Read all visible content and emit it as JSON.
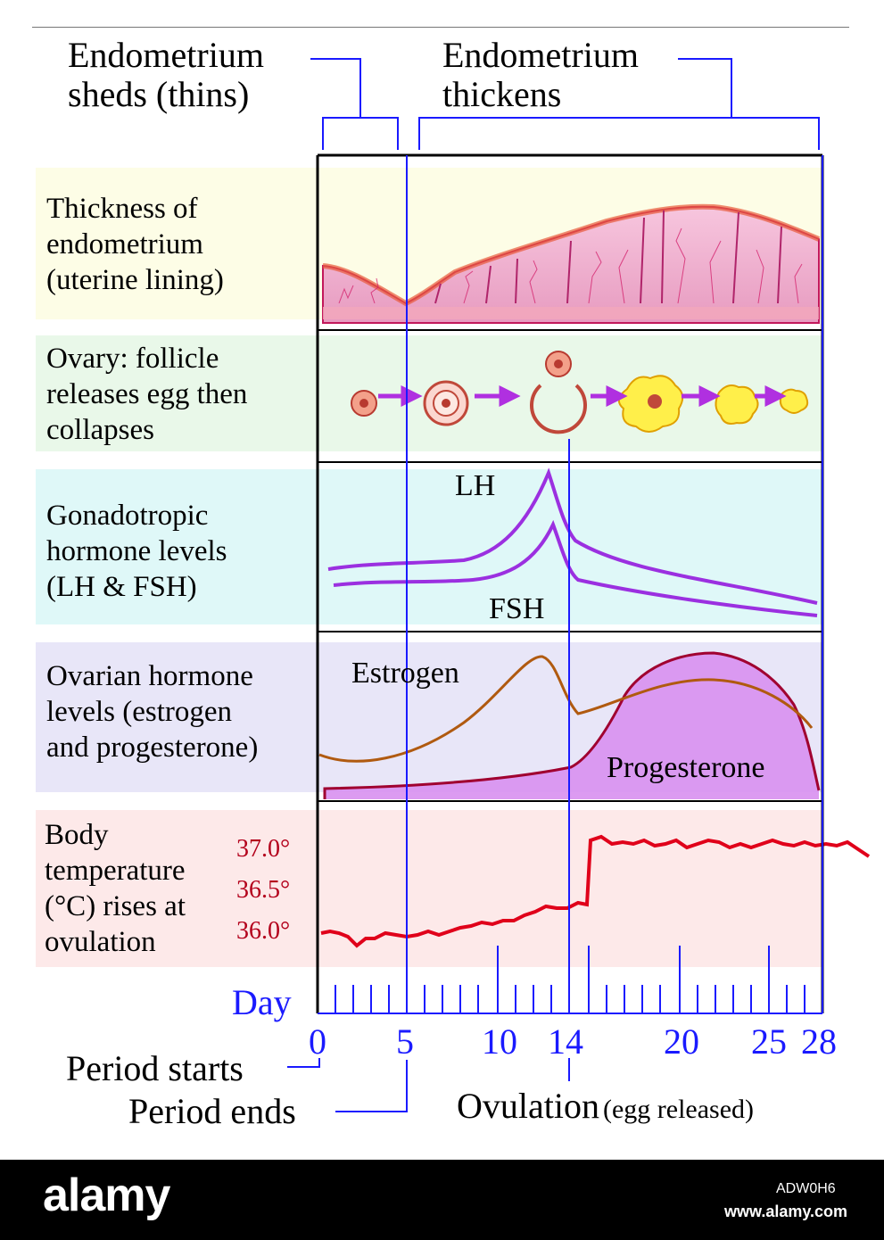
{
  "phases": {
    "sheds": [
      "Endometrium",
      "sheds (thins)"
    ],
    "thickens": [
      "Endometrium",
      "thickens"
    ]
  },
  "rows": {
    "endometrium": [
      "Thickness of",
      "endometrium",
      "(uterine lining)"
    ],
    "ovary": [
      "Ovary: follicle",
      "releases egg then",
      "collapses"
    ],
    "gonadotropic": [
      "Gonadotropic",
      "hormone levels",
      "(LH & FSH)"
    ],
    "ovarian": [
      "Ovarian hormone",
      "levels (estrogen",
      "and progesterone)"
    ],
    "temperature": [
      "Body",
      "temperature",
      "(°C) rises at",
      "ovulation"
    ]
  },
  "curve_labels": {
    "lh": "LH",
    "fsh": "FSH",
    "estrogen": "Estrogen",
    "progesterone": "Progesterone"
  },
  "temperature_ticks": [
    "37.0°",
    "36.5°",
    "36.0°"
  ],
  "day_axis": {
    "title": "Day",
    "tick_labels": [
      "0",
      "5",
      "10",
      "14",
      "20",
      "25",
      "28"
    ]
  },
  "events": {
    "period_starts": "Period starts",
    "period_ends": "Period ends",
    "ovulation": "Ovulation",
    "ovulation_note": "(egg released)"
  },
  "footer": {
    "brand": "alamy",
    "image_id": "ADW0H6",
    "site": "www.alamy.com"
  },
  "colors": {
    "axis_blue": "#1a1aff",
    "lh_fsh": "#9b30e0",
    "estrogen": "#b05a10",
    "progesterone_line": "#a00030",
    "progesterone_fill": "#d890f0",
    "temperature": "#e0001a",
    "row_endometrium_bg": "#fdfde6",
    "row_ovary_bg": "#e9f8e9",
    "row_gonadotropic_bg": "#dff8f8",
    "row_ovarian_bg": "#e8e6f8",
    "row_temperature_bg": "#fde9e9"
  }
}
